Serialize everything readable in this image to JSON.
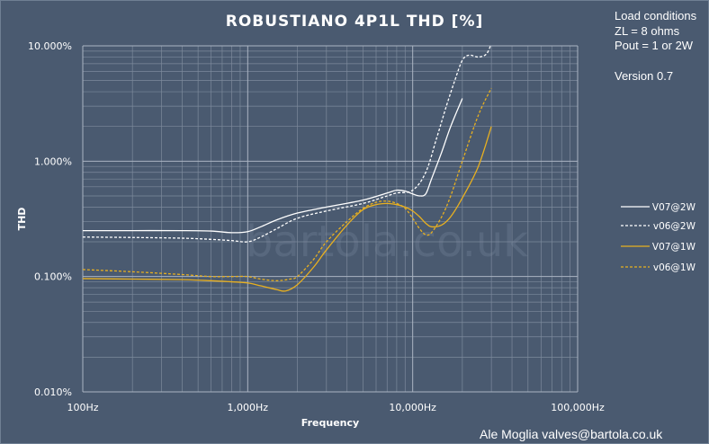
{
  "chart_data": {
    "type": "line",
    "title": "ROBUSTIANO  4P1L THD [%]",
    "xlabel": "Frequency",
    "ylabel": "THD",
    "x_scale": "log",
    "y_scale": "log",
    "xlim": [
      100,
      100000
    ],
    "ylim": [
      0.01,
      10
    ],
    "grid": true,
    "legend_position": "right",
    "x_ticks": [
      {
        "value": 100,
        "label": "100Hz"
      },
      {
        "value": 1000,
        "label": "1,000Hz"
      },
      {
        "value": 10000,
        "label": "10,000Hz"
      },
      {
        "value": 100000,
        "label": "100,000Hz"
      }
    ],
    "y_ticks": [
      {
        "value": 10,
        "label": "10.000%"
      },
      {
        "value": 1,
        "label": "1.000%"
      },
      {
        "value": 0.1,
        "label": "0.100%"
      },
      {
        "value": 0.01,
        "label": "0.010%"
      }
    ],
    "series": [
      {
        "name": "V07@2W",
        "color": "#ffffff",
        "dash": "solid",
        "points": [
          [
            100,
            0.25
          ],
          [
            200,
            0.25
          ],
          [
            400,
            0.25
          ],
          [
            600,
            0.248
          ],
          [
            800,
            0.24
          ],
          [
            1000,
            0.245
          ],
          [
            1200,
            0.27
          ],
          [
            1500,
            0.31
          ],
          [
            2000,
            0.355
          ],
          [
            3000,
            0.4
          ],
          [
            5000,
            0.46
          ],
          [
            7000,
            0.53
          ],
          [
            8000,
            0.56
          ],
          [
            9000,
            0.55
          ],
          [
            10000,
            0.52
          ],
          [
            11000,
            0.5
          ],
          [
            12000,
            0.52
          ],
          [
            13000,
            0.7
          ],
          [
            15000,
            1.2
          ],
          [
            17000,
            2.0
          ],
          [
            20000,
            3.5
          ]
        ]
      },
      {
        "name": "v06@2W",
        "color": "#ffffff",
        "dash": "dashed",
        "points": [
          [
            100,
            0.22
          ],
          [
            200,
            0.218
          ],
          [
            400,
            0.215
          ],
          [
            600,
            0.21
          ],
          [
            800,
            0.205
          ],
          [
            1000,
            0.2
          ],
          [
            1200,
            0.22
          ],
          [
            1500,
            0.26
          ],
          [
            2000,
            0.32
          ],
          [
            3000,
            0.37
          ],
          [
            5000,
            0.43
          ],
          [
            7000,
            0.5
          ],
          [
            8000,
            0.53
          ],
          [
            10000,
            0.56
          ],
          [
            12000,
            0.8
          ],
          [
            14000,
            1.6
          ],
          [
            16000,
            3.0
          ],
          [
            18000,
            5.0
          ],
          [
            20000,
            7.5
          ],
          [
            22000,
            8.3
          ],
          [
            25000,
            8.0
          ],
          [
            28000,
            8.5
          ],
          [
            30000,
            10.5
          ]
        ]
      },
      {
        "name": "V07@1W",
        "color": "#e8b020",
        "dash": "solid",
        "points": [
          [
            100,
            0.096
          ],
          [
            200,
            0.095
          ],
          [
            400,
            0.094
          ],
          [
            600,
            0.092
          ],
          [
            800,
            0.09
          ],
          [
            1000,
            0.088
          ],
          [
            1200,
            0.083
          ],
          [
            1500,
            0.077
          ],
          [
            1700,
            0.075
          ],
          [
            2000,
            0.085
          ],
          [
            2500,
            0.12
          ],
          [
            3000,
            0.17
          ],
          [
            4000,
            0.28
          ],
          [
            5000,
            0.38
          ],
          [
            6000,
            0.42
          ],
          [
            7000,
            0.43
          ],
          [
            8000,
            0.42
          ],
          [
            9000,
            0.4
          ],
          [
            10000,
            0.37
          ],
          [
            11000,
            0.33
          ],
          [
            12000,
            0.29
          ],
          [
            13000,
            0.27
          ],
          [
            15000,
            0.28
          ],
          [
            17000,
            0.33
          ],
          [
            20000,
            0.48
          ],
          [
            25000,
            0.9
          ],
          [
            30000,
            2.0
          ]
        ]
      },
      {
        "name": "v06@1W",
        "color": "#e8b020",
        "dash": "dashed",
        "points": [
          [
            100,
            0.115
          ],
          [
            200,
            0.11
          ],
          [
            400,
            0.104
          ],
          [
            600,
            0.1
          ],
          [
            800,
            0.1
          ],
          [
            1000,
            0.1
          ],
          [
            1200,
            0.095
          ],
          [
            1500,
            0.092
          ],
          [
            1800,
            0.095
          ],
          [
            2000,
            0.1
          ],
          [
            2500,
            0.14
          ],
          [
            3000,
            0.2
          ],
          [
            4000,
            0.3
          ],
          [
            5000,
            0.39
          ],
          [
            6000,
            0.44
          ],
          [
            7000,
            0.45
          ],
          [
            8000,
            0.43
          ],
          [
            9000,
            0.39
          ],
          [
            10000,
            0.32
          ],
          [
            11000,
            0.26
          ],
          [
            12000,
            0.23
          ],
          [
            13000,
            0.24
          ],
          [
            15000,
            0.33
          ],
          [
            17000,
            0.5
          ],
          [
            20000,
            1.0
          ],
          [
            25000,
            2.5
          ],
          [
            30000,
            4.3
          ]
        ]
      }
    ]
  },
  "info": {
    "load_conditions": "Load conditions",
    "zl": "ZL = 8 ohms",
    "pout": "Pout = 1 or 2W",
    "version": "Version 0.7"
  },
  "credit": "Ale Moglia valves@bartola.co.uk",
  "watermark": "bartola.co.uk",
  "colors": {
    "background": "#4a5a70",
    "plot_background": "#4a5a70",
    "grid_major": "#aab4c2",
    "grid_minor": "#7d8a9c",
    "text": "#ffffff",
    "white_series": "#ffffff",
    "gold_series": "#e8b020"
  }
}
